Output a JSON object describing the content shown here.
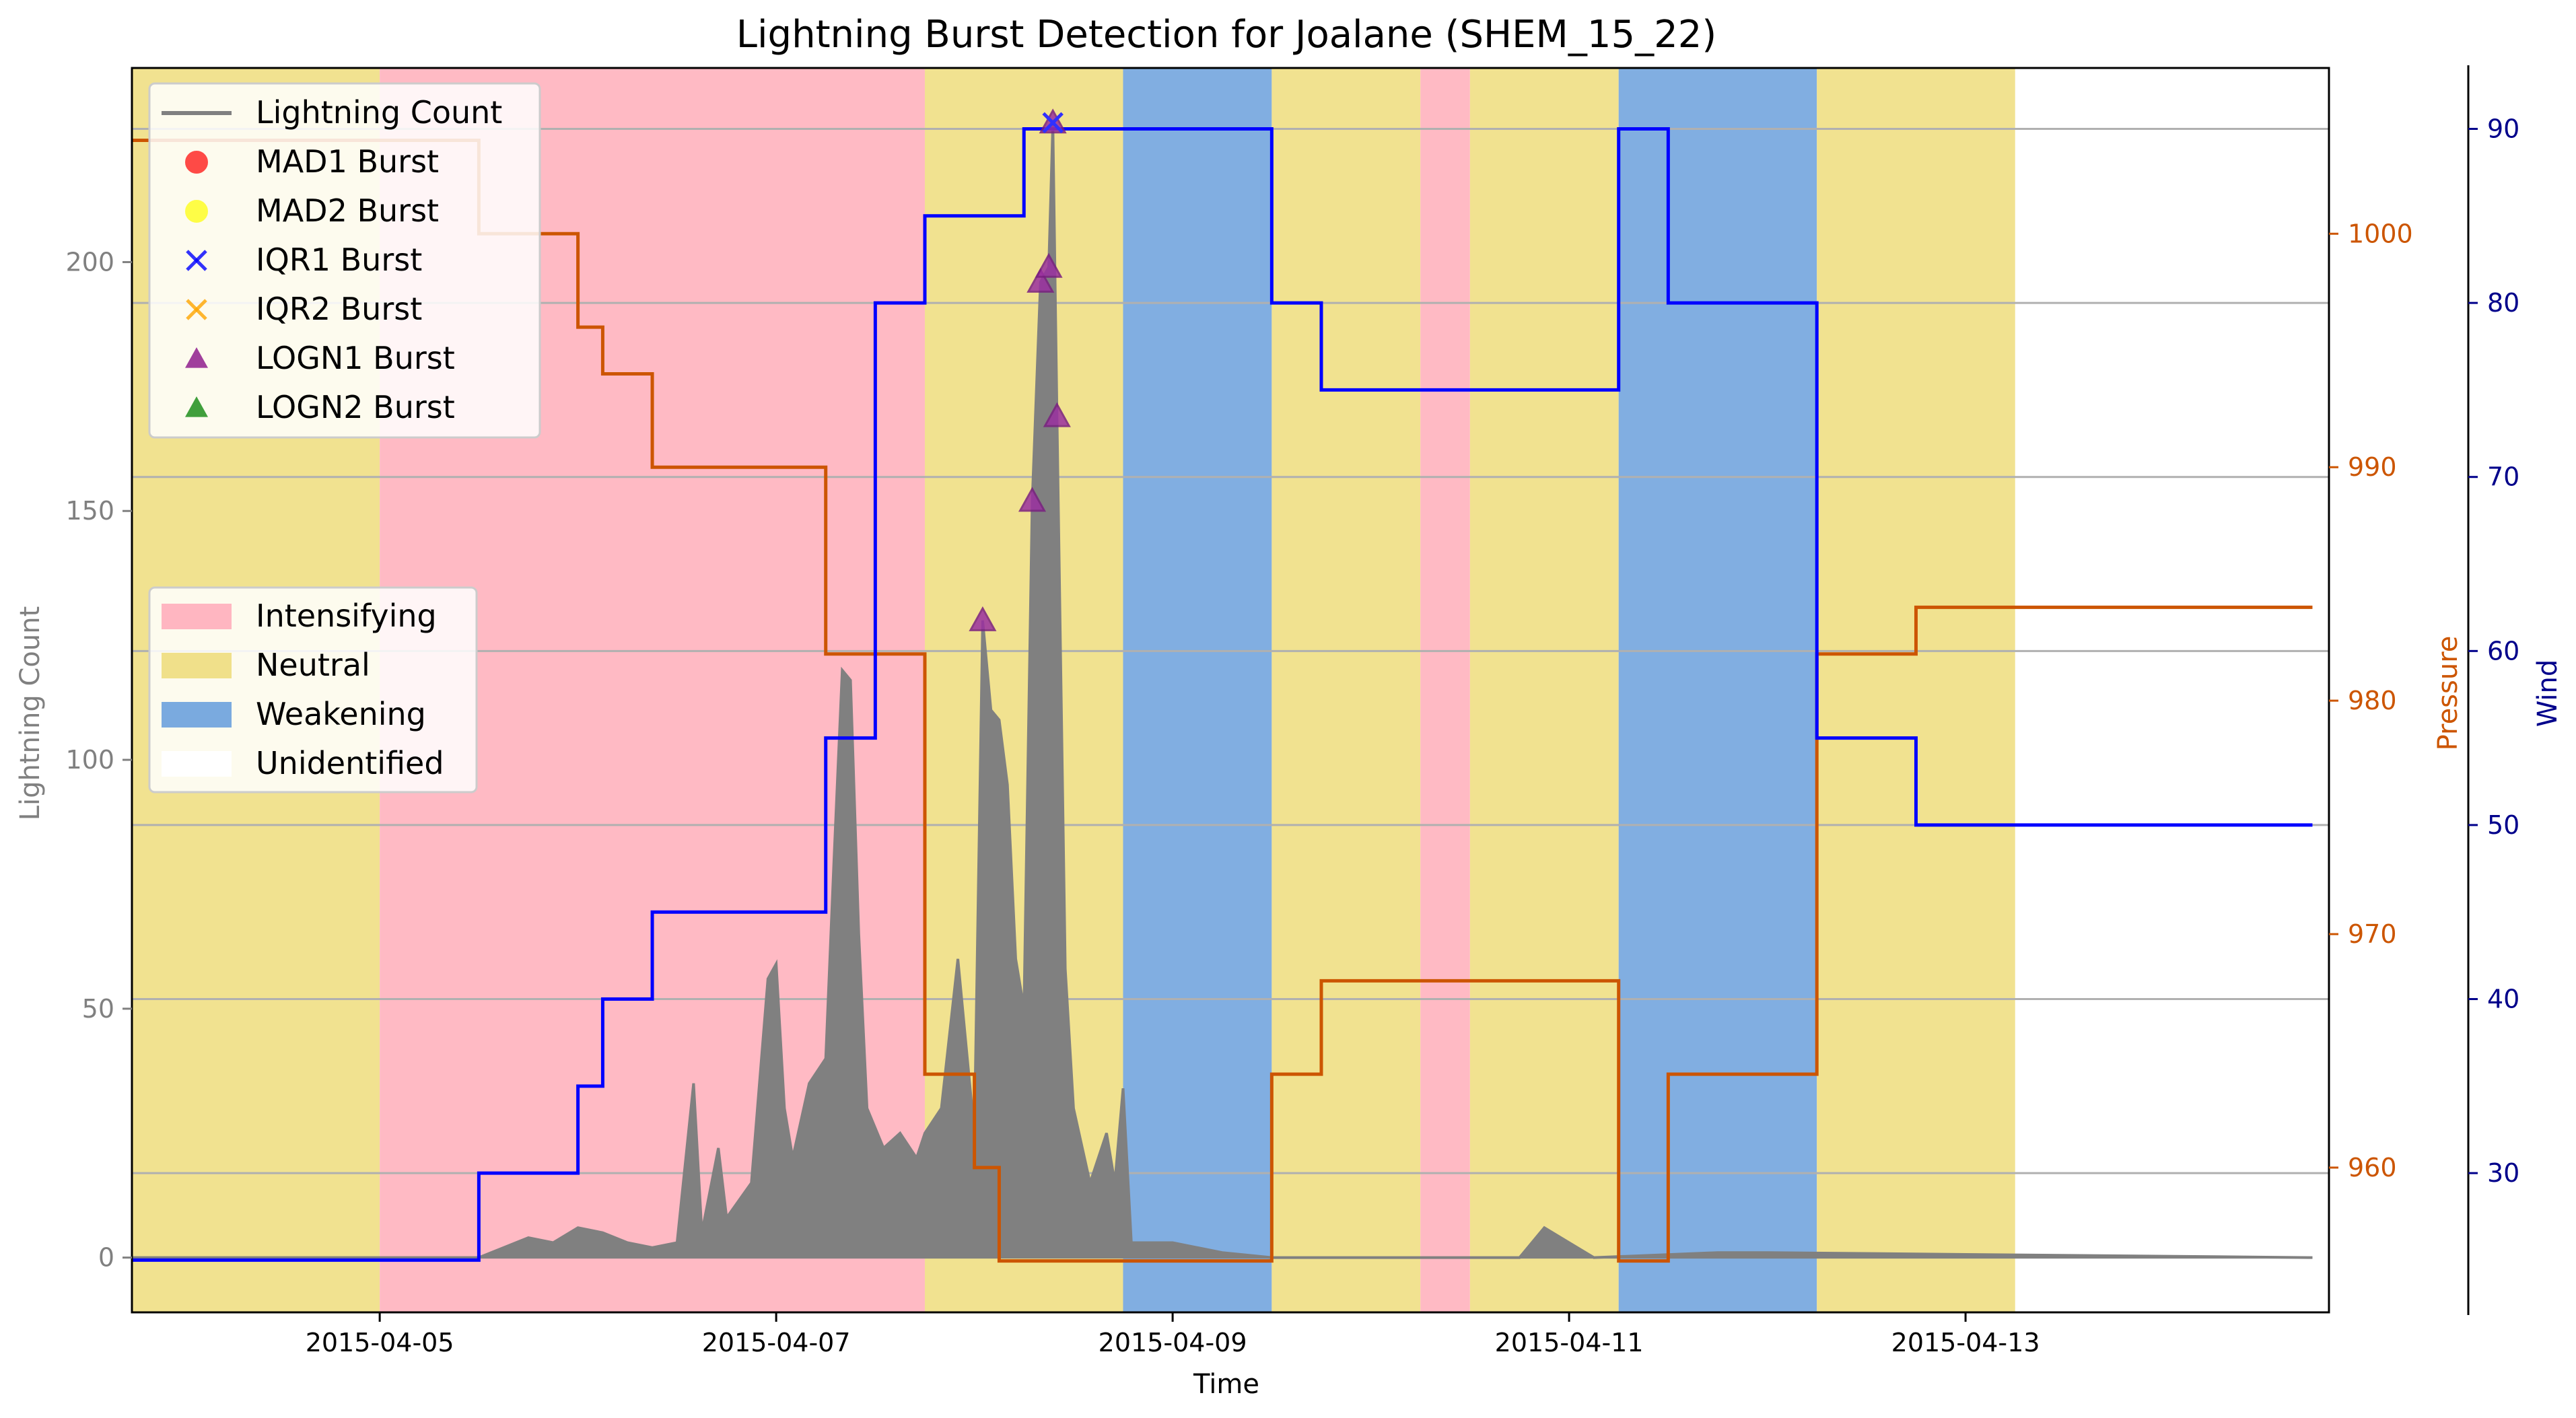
{
  "chart_data": {
    "type": "line",
    "title": "Lightning Burst Detection for Joalane (SHEM_15_22)",
    "xlabel": "Time",
    "ylabel_left": "Lightning Count",
    "ylabel_pressure": "Pressure",
    "ylabel_wind": "Wind",
    "x_range": [
      "2015-04-03 18:00",
      "2015-04-14 20:00"
    ],
    "x_ticks": [
      "2015-04-05",
      "2015-04-07",
      "2015-04-09",
      "2015-04-11",
      "2015-04-13"
    ],
    "y_left_range": [
      -11,
      239
    ],
    "y_left_ticks": [
      0,
      50,
      100,
      150,
      200
    ],
    "y_pressure_range": [
      953.8,
      1007.1
    ],
    "y_pressure_ticks": [
      960,
      970,
      980,
      990,
      1000
    ],
    "y_wind_range": [
      22,
      93.5
    ],
    "y_wind_ticks": [
      30,
      40,
      50,
      60,
      70,
      80,
      90
    ],
    "grid": "horizontal lines at wind ticks",
    "colors": {
      "lightning": "#808080",
      "pressure": "#cc5500",
      "wind": "#0000ff",
      "intensifying": "#ffb6c1",
      "neutral": "#f0e08a",
      "weakening": "#7aaadf",
      "pressure_axis": "#cc5500",
      "wind_axis": "#00008b",
      "left_axis": "#808080"
    },
    "phases": [
      {
        "phase": "Neutral",
        "start": "2015-04-03 18:00",
        "end": "2015-04-05 00:00"
      },
      {
        "phase": "Intensifying",
        "start": "2015-04-05 00:00",
        "end": "2015-04-07 18:00"
      },
      {
        "phase": "Neutral",
        "start": "2015-04-07 18:00",
        "end": "2015-04-08 18:00"
      },
      {
        "phase": "Weakening",
        "start": "2015-04-08 18:00",
        "end": "2015-04-09 12:00"
      },
      {
        "phase": "Neutral",
        "start": "2015-04-09 12:00",
        "end": "2015-04-10 06:00"
      },
      {
        "phase": "Intensifying",
        "start": "2015-04-10 06:00",
        "end": "2015-04-10 12:00"
      },
      {
        "phase": "Neutral",
        "start": "2015-04-10 12:00",
        "end": "2015-04-11 06:00"
      },
      {
        "phase": "Weakening",
        "start": "2015-04-11 06:00",
        "end": "2015-04-12 06:00"
      },
      {
        "phase": "Neutral",
        "start": "2015-04-12 06:00",
        "end": "2015-04-13 06:00"
      }
    ],
    "pressure": {
      "name": "Pressure",
      "points": [
        [
          "2015-04-03 18:00",
          1004
        ],
        [
          "2015-04-05 12:00",
          1004
        ],
        [
          "2015-04-05 12:00",
          1000
        ],
        [
          "2015-04-06 00:00",
          1000
        ],
        [
          "2015-04-06 00:00",
          996
        ],
        [
          "2015-04-06 03:00",
          996
        ],
        [
          "2015-04-06 03:00",
          994
        ],
        [
          "2015-04-06 09:00",
          994
        ],
        [
          "2015-04-06 09:00",
          990
        ],
        [
          "2015-04-07 06:00",
          990
        ],
        [
          "2015-04-07 06:00",
          982
        ],
        [
          "2015-04-07 18:00",
          982
        ],
        [
          "2015-04-07 18:00",
          964
        ],
        [
          "2015-04-08 00:00",
          964
        ],
        [
          "2015-04-08 00:00",
          960
        ],
        [
          "2015-04-08 03:00",
          960
        ],
        [
          "2015-04-08 03:00",
          956
        ],
        [
          "2015-04-09 12:00",
          956
        ],
        [
          "2015-04-09 12:00",
          964
        ],
        [
          "2015-04-09 18:00",
          964
        ],
        [
          "2015-04-09 18:00",
          968
        ],
        [
          "2015-04-11 06:00",
          968
        ],
        [
          "2015-04-11 06:00",
          956
        ],
        [
          "2015-04-11 12:00",
          956
        ],
        [
          "2015-04-11 12:00",
          964
        ],
        [
          "2015-04-12 06:00",
          964
        ],
        [
          "2015-04-12 06:00",
          982
        ],
        [
          "2015-04-12 18:00",
          982
        ],
        [
          "2015-04-12 18:00",
          984
        ],
        [
          "2015-04-14 18:00",
          984
        ]
      ]
    },
    "wind": {
      "name": "Wind",
      "points": [
        [
          "2015-04-03 18:00",
          25
        ],
        [
          "2015-04-05 12:00",
          25
        ],
        [
          "2015-04-05 12:00",
          30
        ],
        [
          "2015-04-06 00:00",
          30
        ],
        [
          "2015-04-06 00:00",
          35
        ],
        [
          "2015-04-06 03:00",
          35
        ],
        [
          "2015-04-06 03:00",
          40
        ],
        [
          "2015-04-06 09:00",
          40
        ],
        [
          "2015-04-06 09:00",
          45
        ],
        [
          "2015-04-07 06:00",
          45
        ],
        [
          "2015-04-07 06:00",
          55
        ],
        [
          "2015-04-07 12:00",
          55
        ],
        [
          "2015-04-07 12:00",
          80
        ],
        [
          "2015-04-07 18:00",
          80
        ],
        [
          "2015-04-07 18:00",
          85
        ],
        [
          "2015-04-08 06:00",
          85
        ],
        [
          "2015-04-08 06:00",
          90
        ],
        [
          "2015-04-09 12:00",
          90
        ],
        [
          "2015-04-09 12:00",
          80
        ],
        [
          "2015-04-09 18:00",
          80
        ],
        [
          "2015-04-09 18:00",
          75
        ],
        [
          "2015-04-11 06:00",
          75
        ],
        [
          "2015-04-11 06:00",
          90
        ],
        [
          "2015-04-11 12:00",
          90
        ],
        [
          "2015-04-11 12:00",
          80
        ],
        [
          "2015-04-12 06:00",
          80
        ],
        [
          "2015-04-12 06:00",
          55
        ],
        [
          "2015-04-12 18:00",
          55
        ],
        [
          "2015-04-12 18:00",
          50
        ],
        [
          "2015-04-14 18:00",
          50
        ]
      ]
    },
    "lightning": {
      "name": "Lightning Count",
      "points": [
        [
          "2015-04-03 18:00",
          0
        ],
        [
          "2015-04-05 12:00",
          0
        ],
        [
          "2015-04-05 15:00",
          2
        ],
        [
          "2015-04-05 18:00",
          4
        ],
        [
          "2015-04-05 21:00",
          3
        ],
        [
          "2015-04-06 00:00",
          6
        ],
        [
          "2015-04-06 03:00",
          5
        ],
        [
          "2015-04-06 06:00",
          3
        ],
        [
          "2015-04-06 09:00",
          2
        ],
        [
          "2015-04-06 12:00",
          3
        ],
        [
          "2015-04-06 14:00",
          35
        ],
        [
          "2015-04-06 15:00",
          5
        ],
        [
          "2015-04-06 17:00",
          22
        ],
        [
          "2015-04-06 18:00",
          8
        ],
        [
          "2015-04-06 21:00",
          15
        ],
        [
          "2015-04-06 23:00",
          56
        ],
        [
          "2015-04-07 00:00",
          59
        ],
        [
          "2015-04-07 01:00",
          30
        ],
        [
          "2015-04-07 02:00",
          20
        ],
        [
          "2015-04-07 04:00",
          35
        ],
        [
          "2015-04-07 06:00",
          40
        ],
        [
          "2015-04-07 07:00",
          80
        ],
        [
          "2015-04-07 08:00",
          118
        ],
        [
          "2015-04-07 09:00",
          116
        ],
        [
          "2015-04-07 10:00",
          65
        ],
        [
          "2015-04-07 11:00",
          30
        ],
        [
          "2015-04-07 13:00",
          22
        ],
        [
          "2015-04-07 15:00",
          25
        ],
        [
          "2015-04-07 17:00",
          20
        ],
        [
          "2015-04-07 18:00",
          25
        ],
        [
          "2015-04-07 20:00",
          30
        ],
        [
          "2015-04-07 22:00",
          60
        ],
        [
          "2015-04-08 00:00",
          25
        ],
        [
          "2015-04-08 01:00",
          128
        ],
        [
          "2015-04-08 02:00",
          110
        ],
        [
          "2015-04-08 03:00",
          108
        ],
        [
          "2015-04-08 04:00",
          95
        ],
        [
          "2015-04-08 05:00",
          60
        ],
        [
          "2015-04-08 06:00",
          50
        ],
        [
          "2015-04-08 07:00",
          152
        ],
        [
          "2015-04-08 08:00",
          196
        ],
        [
          "2015-04-08 09:00",
          199
        ],
        [
          "2015-04-08 09:30",
          228
        ],
        [
          "2015-04-08 10:00",
          169
        ],
        [
          "2015-04-08 11:00",
          58
        ],
        [
          "2015-04-08 12:00",
          30
        ],
        [
          "2015-04-08 14:00",
          15
        ],
        [
          "2015-04-08 16:00",
          25
        ],
        [
          "2015-04-08 17:00",
          15
        ],
        [
          "2015-04-08 18:00",
          34
        ],
        [
          "2015-04-08 19:00",
          3
        ],
        [
          "2015-04-09 00:00",
          3
        ],
        [
          "2015-04-09 03:00",
          2
        ],
        [
          "2015-04-09 06:00",
          1
        ],
        [
          "2015-04-09 12:00",
          0
        ],
        [
          "2015-04-10 18:00",
          0
        ],
        [
          "2015-04-10 21:00",
          6
        ],
        [
          "2015-04-11 00:00",
          3
        ],
        [
          "2015-04-11 03:00",
          0
        ],
        [
          "2015-04-11 18:00",
          1
        ],
        [
          "2015-04-12 00:00",
          1
        ],
        [
          "2015-04-14 18:00",
          0
        ]
      ]
    },
    "burst_markers": [
      {
        "method": "LOGN1",
        "x": "2015-04-08 01:00",
        "y": 128
      },
      {
        "method": "LOGN1",
        "x": "2015-04-08 07:00",
        "y": 152
      },
      {
        "method": "LOGN1",
        "x": "2015-04-08 08:00",
        "y": 196
      },
      {
        "method": "LOGN1",
        "x": "2015-04-08 09:00",
        "y": 199
      },
      {
        "method": "LOGN1",
        "x": "2015-04-08 09:30",
        "y": 228
      },
      {
        "method": "LOGN1",
        "x": "2015-04-08 10:00",
        "y": 169
      },
      {
        "method": "IQR1",
        "x": "2015-04-08 09:30",
        "y": 228
      }
    ],
    "legend_top": {
      "placement": "upper-left",
      "entries": [
        {
          "label": "Lightning Count",
          "marker": "line",
          "color": "#808080"
        },
        {
          "label": "MAD1 Burst",
          "marker": "circle",
          "color": "#ff0000"
        },
        {
          "label": "MAD2 Burst",
          "marker": "circle",
          "color": "#ffff00"
        },
        {
          "label": "IQR1 Burst",
          "marker": "x",
          "color": "#0000ff"
        },
        {
          "label": "IQR2 Burst",
          "marker": "x",
          "color": "#ffa500"
        },
        {
          "label": "LOGN1 Burst",
          "marker": "triangle",
          "color": "#800080"
        },
        {
          "label": "LOGN2 Burst",
          "marker": "triangle",
          "color": "#008000"
        }
      ]
    },
    "legend_phase": {
      "placement": "center-left",
      "entries": [
        {
          "label": "Intensifying",
          "color": "#ffb6c1"
        },
        {
          "label": "Neutral",
          "color": "#f0e08a"
        },
        {
          "label": "Weakening",
          "color": "#7aaadf"
        },
        {
          "label": "Unidentified",
          "color": "#ffffff"
        }
      ]
    }
  }
}
